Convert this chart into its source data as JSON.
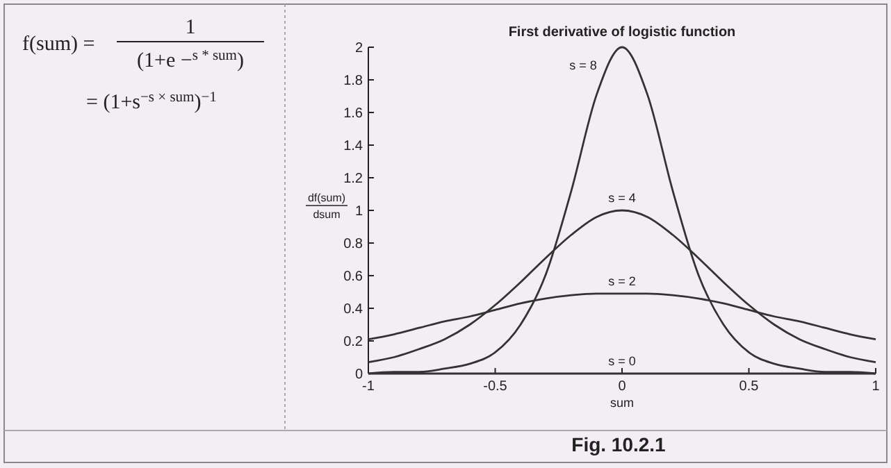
{
  "chart_data": {
    "type": "line",
    "title": "First derivative of logistic function",
    "xlabel": "sum",
    "ylabel": "df(sum)\ndsum",
    "x": [
      -1,
      -0.9,
      -0.8,
      -0.7,
      -0.6,
      -0.5,
      -0.4,
      -0.3,
      -0.2,
      -0.1,
      0,
      0.1,
      0.2,
      0.3,
      0.4,
      0.5,
      0.6,
      0.7,
      0.8,
      0.9,
      1
    ],
    "series": [
      {
        "name": "s = 8",
        "color": "#333333",
        "values": [
          0,
          0.01,
          0.01,
          0.03,
          0.06,
          0.13,
          0.3,
          0.61,
          1.12,
          1.71,
          2,
          1.71,
          1.12,
          0.61,
          0.3,
          0.13,
          0.06,
          0.03,
          0.01,
          0.01,
          0
        ]
      },
      {
        "name": "s = 4",
        "color": "#333333",
        "values": [
          0.07,
          0.1,
          0.15,
          0.21,
          0.3,
          0.42,
          0.56,
          0.71,
          0.85,
          0.96,
          1,
          0.96,
          0.85,
          0.71,
          0.56,
          0.42,
          0.3,
          0.21,
          0.15,
          0.1,
          0.07
        ]
      },
      {
        "name": "s = 2",
        "color": "#333333",
        "values": [
          0.21,
          0.24,
          0.28,
          0.32,
          0.35,
          0.39,
          0.43,
          0.46,
          0.48,
          0.49,
          0.49,
          0.49,
          0.48,
          0.46,
          0.43,
          0.39,
          0.35,
          0.32,
          0.28,
          0.24,
          0.21
        ]
      },
      {
        "name": "s = 0",
        "color": "#333333",
        "values": [
          0,
          0,
          0,
          0,
          0,
          0,
          0,
          0,
          0,
          0,
          0,
          0,
          0,
          0,
          0,
          0,
          0,
          0,
          0,
          0,
          0
        ]
      }
    ],
    "xlim": [
      -1,
      1
    ],
    "xticks": [
      -1,
      -0.5,
      0,
      0.5,
      1
    ],
    "ylim": [
      0,
      2
    ],
    "yticks": [
      0,
      0.2,
      0.4,
      0.6,
      0.8,
      1,
      1.2,
      1.4,
      1.6,
      1.8,
      2
    ],
    "annotations": [
      "f(sum) =",
      "1",
      "(1+e −$^{s * sum}$)",
      "= (1+s$^{−s × sum}$)$^{−1}$",
      "Fig. 10.2.1"
    ]
  }
}
